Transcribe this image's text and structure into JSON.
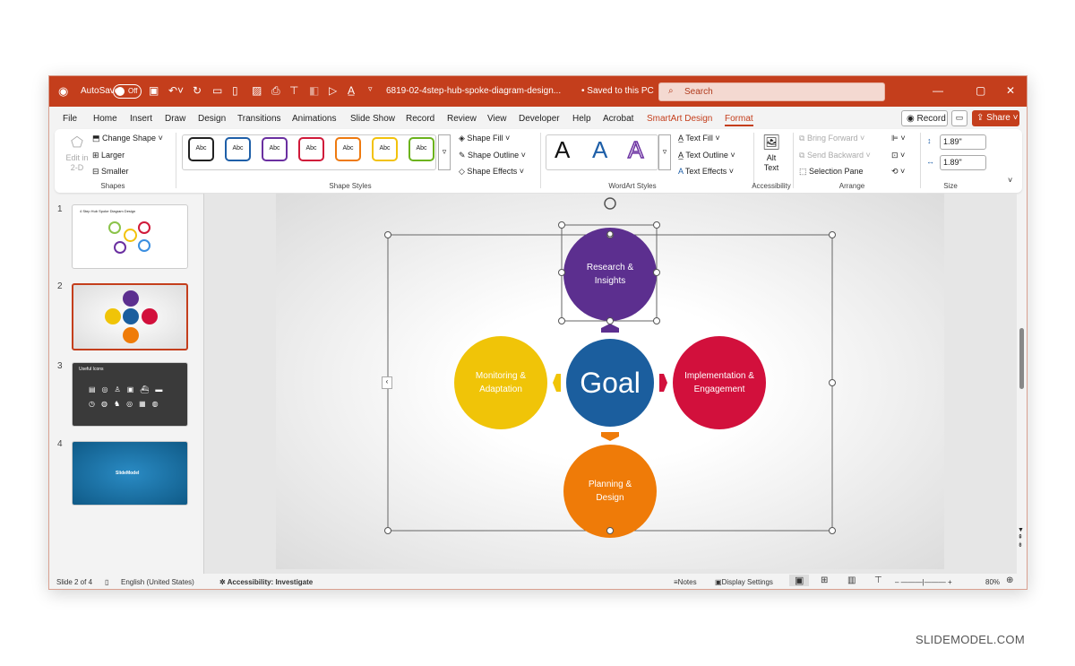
{
  "titlebar": {
    "autosave_label": "AutoSave",
    "autosave_state": "Off",
    "filename": "6819-02-4step-hub-spoke-diagram-design...",
    "save_status": "• Saved to this PC",
    "search_placeholder": "Search"
  },
  "tabs": [
    "File",
    "Home",
    "Insert",
    "Draw",
    "Design",
    "Transitions",
    "Animations",
    "Slide Show",
    "Record",
    "Review",
    "View",
    "Developer",
    "Help",
    "Acrobat",
    "SmartArt Design",
    "Format"
  ],
  "active_tab": "Format",
  "header_buttons": {
    "record": "Record",
    "share": "Share"
  },
  "ribbon": {
    "shapes": {
      "edit_2d": "Edit in 2-D",
      "change_shape": "Change Shape",
      "larger": "Larger",
      "smaller": "Smaller",
      "group": "Shapes"
    },
    "shape_styles": {
      "swatches": [
        {
          "label": "Abc",
          "color": "#222222"
        },
        {
          "label": "Abc",
          "color": "#1e5fa8"
        },
        {
          "label": "Abc",
          "color": "#6a2fa0"
        },
        {
          "label": "Abc",
          "color": "#d01a3a"
        },
        {
          "label": "Abc",
          "color": "#ee7a10"
        },
        {
          "label": "Abc",
          "color": "#f2c20c"
        },
        {
          "label": "Abc",
          "color": "#6cb31d"
        }
      ],
      "fill": "Shape Fill",
      "outline": "Shape Outline",
      "effects": "Shape Effects",
      "group": "Shape Styles"
    },
    "wordart": {
      "letters": [
        "A",
        "A",
        "A"
      ],
      "text_fill": "Text Fill",
      "text_outline": "Text Outline",
      "text_effects": "Text Effects",
      "group": "WordArt Styles"
    },
    "accessibility": {
      "alt_text": "Alt Text",
      "group": "Accessibility"
    },
    "arrange": {
      "bring_forward": "Bring Forward",
      "send_backward": "Send Backward",
      "selection_pane": "Selection Pane",
      "group": "Arrange"
    },
    "size": {
      "height": "1.89\"",
      "width": "1.89\"",
      "group": "Size"
    }
  },
  "thumbnails": [
    {
      "num": "1",
      "title": "4 Step Hub Spoke Diagram Design"
    },
    {
      "num": "2",
      "title": ""
    },
    {
      "num": "3",
      "title": "Useful Icons"
    },
    {
      "num": "4",
      "title": "SlideModel"
    }
  ],
  "diagram": {
    "hub": {
      "label": "Goal",
      "color": "#1b5e9e"
    },
    "spokes": [
      {
        "label": "Research & Insights",
        "color": "#5c2f8f"
      },
      {
        "label": "Implementation & Engagement",
        "color": "#d2103c"
      },
      {
        "label": "Planning & Design",
        "color": "#ef7b08"
      },
      {
        "label": "Monitoring & Adaptation",
        "color": "#f0c408"
      }
    ]
  },
  "status": {
    "slide": "Slide 2 of 4",
    "language": "English (United States)",
    "accessibility": "Accessibility: Investigate",
    "notes": "Notes",
    "display_settings": "Display Settings",
    "zoom": "80%"
  },
  "watermark": "SLIDEMODEL.COM"
}
